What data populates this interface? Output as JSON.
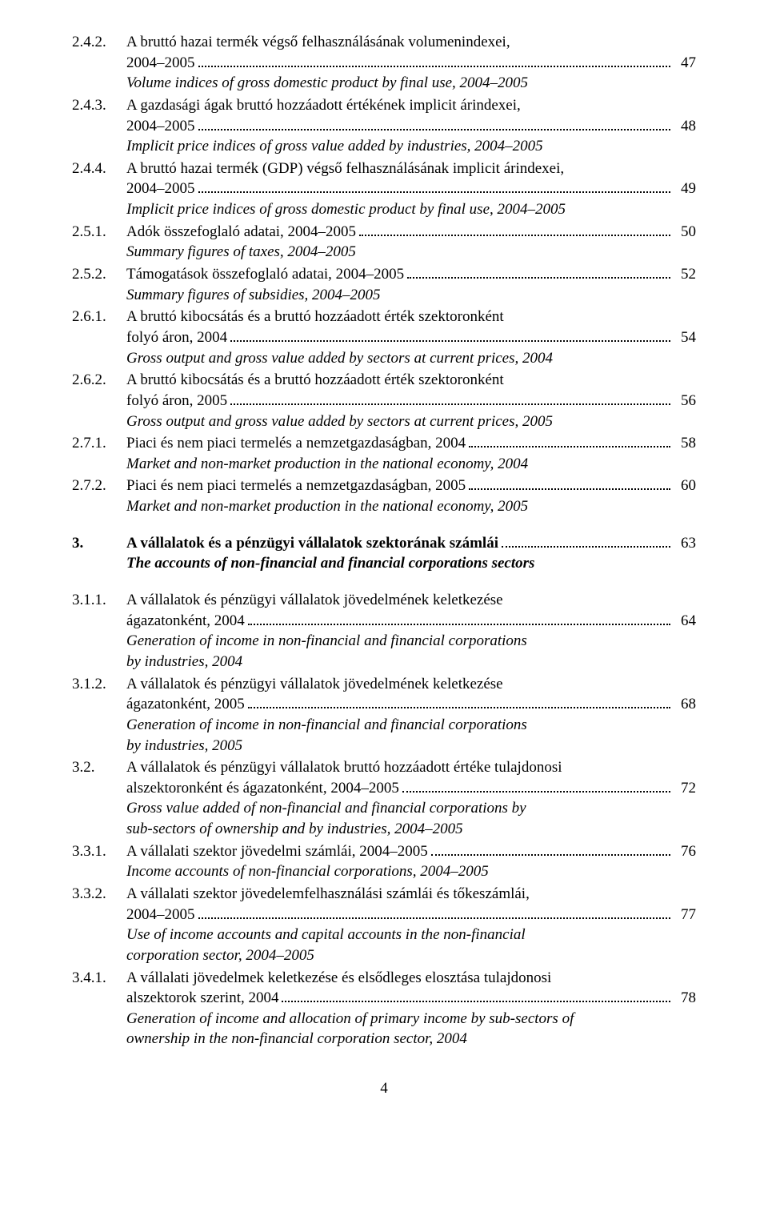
{
  "entries": [
    {
      "num": "2.4.2.",
      "lines": [
        {
          "text": "A bruttó hazai termék végső felhasználásának volumenindexei,"
        },
        {
          "text": "2004–2005",
          "page": "47"
        }
      ],
      "subs": [
        {
          "text": "Volume indices of gross domestic product by final use, 2004–2005",
          "italic": true
        }
      ]
    },
    {
      "num": "2.4.3.",
      "lines": [
        {
          "text": "A gazdasági ágak bruttó hozzáadott értékének implicit árindexei,"
        },
        {
          "text": "2004–2005",
          "page": "48"
        }
      ],
      "subs": [
        {
          "text": "Implicit price indices of gross value added by industries, 2004–2005",
          "italic": true
        }
      ]
    },
    {
      "num": "2.4.4.",
      "lines": [
        {
          "text": "A bruttó hazai termék (GDP) végső felhasználásának implicit árindexei,"
        },
        {
          "text": "2004–2005",
          "page": "49"
        }
      ],
      "subs": [
        {
          "text": "Implicit price indices of gross domestic product by final use, 2004–2005",
          "italic": true
        }
      ]
    },
    {
      "num": "2.5.1.",
      "lines": [
        {
          "text": "Adók összefoglaló adatai, 2004–2005",
          "page": "50"
        }
      ],
      "subs": [
        {
          "text": "Summary figures of taxes, 2004–2005",
          "italic": true
        }
      ]
    },
    {
      "num": "2.5.2.",
      "lines": [
        {
          "text": "Támogatások összefoglaló adatai, 2004–2005",
          "page": "52"
        }
      ],
      "subs": [
        {
          "text": "Summary figures of subsidies, 2004–2005",
          "italic": true
        }
      ]
    },
    {
      "num": "2.6.1.",
      "lines": [
        {
          "text": "A bruttó kibocsátás és a bruttó hozzáadott érték szektoronként"
        },
        {
          "text": "folyó áron, 2004",
          "page": "54"
        }
      ],
      "subs": [
        {
          "text": "Gross output and gross value added by sectors at current prices, 2004",
          "italic": true
        }
      ]
    },
    {
      "num": "2.6.2.",
      "lines": [
        {
          "text": "A bruttó kibocsátás és a bruttó hozzáadott érték szektoronként"
        },
        {
          "text": "folyó áron, 2005",
          "page": "56"
        }
      ],
      "subs": [
        {
          "text": "Gross output and gross value added by sectors at current prices, 2005",
          "italic": true
        }
      ]
    },
    {
      "num": "2.7.1.",
      "lines": [
        {
          "text": "Piaci és nem piaci termelés a nemzetgazdaságban, 2004",
          "page": "58"
        }
      ],
      "subs": [
        {
          "text": "Market and non-market production in the national economy, 2004",
          "italic": true
        }
      ]
    },
    {
      "num": "2.7.2.",
      "lines": [
        {
          "text": "Piaci és nem piaci termelés a nemzetgazdaságban, 2005",
          "page": "60"
        }
      ],
      "subs": [
        {
          "text": "Market and non-market production in the national economy, 2005",
          "italic": true
        }
      ]
    },
    {
      "spacer": true
    },
    {
      "num": "3.",
      "bold": true,
      "lines": [
        {
          "text": "A vállalatok és a pénzügyi vállalatok szektorának számlái",
          "page": "63"
        }
      ],
      "subs": [
        {
          "text": "The accounts of non-financial and financial corporations sectors",
          "italic": true,
          "bold": true
        }
      ]
    },
    {
      "spacer": true
    },
    {
      "num": "3.1.1.",
      "lines": [
        {
          "text": "A vállalatok és pénzügyi vállalatok jövedelmének keletkezése"
        },
        {
          "text": "ágazatonként, 2004",
          "page": "64"
        }
      ],
      "subs": [
        {
          "text": "Generation of income in non-financial and financial corporations",
          "italic": true
        },
        {
          "text": "by industries, 2004",
          "italic": true
        }
      ]
    },
    {
      "num": "3.1.2.",
      "lines": [
        {
          "text": "A vállalatok és pénzügyi vállalatok jövedelmének keletkezése"
        },
        {
          "text": "ágazatonként, 2005",
          "page": "68"
        }
      ],
      "subs": [
        {
          "text": "Generation of income in non-financial and financial corporations",
          "italic": true
        },
        {
          "text": "by industries, 2005",
          "italic": true
        }
      ]
    },
    {
      "num": "3.2.",
      "lines": [
        {
          "text": "A vállalatok és pénzügyi vállalatok bruttó hozzáadott értéke tulajdonosi"
        },
        {
          "text": "alszektoronként és ágazatonként, 2004–2005",
          "page": "72"
        }
      ],
      "subs": [
        {
          "text": "Gross value added of non-financial and financial corporations by",
          "italic": true
        },
        {
          "text": "sub-sectors of ownership and by industries, 2004–2005",
          "italic": true
        }
      ]
    },
    {
      "num": "3.3.1.",
      "lines": [
        {
          "text": "A vállalati szektor jövedelmi számlái, 2004–2005",
          "page": "76"
        }
      ],
      "subs": [
        {
          "text": "Income accounts of non-financial corporations, 2004–2005",
          "italic": true
        }
      ]
    },
    {
      "num": "3.3.2.",
      "lines": [
        {
          "text": "A vállalati szektor jövedelemfelhasználási számlái és tőkeszámlái,"
        },
        {
          "text": "2004–2005",
          "page": "77"
        }
      ],
      "subs": [
        {
          "text": "Use of income accounts and capital accounts in the non-financial",
          "italic": true
        },
        {
          "text": "corporation sector, 2004–2005",
          "italic": true
        }
      ]
    },
    {
      "num": "3.4.1.",
      "lines": [
        {
          "text": "A vállalati jövedelmek keletkezése és elsődleges elosztása tulajdonosi"
        },
        {
          "text": "alszektorok szerint, 2004",
          "page": "78"
        }
      ],
      "subs": [
        {
          "text": "Generation of income and allocation of primary income by sub-sectors of",
          "italic": true
        },
        {
          "text": "ownership in the non-financial corporation sector, 2004",
          "italic": true
        }
      ]
    }
  ],
  "page_number": "4"
}
